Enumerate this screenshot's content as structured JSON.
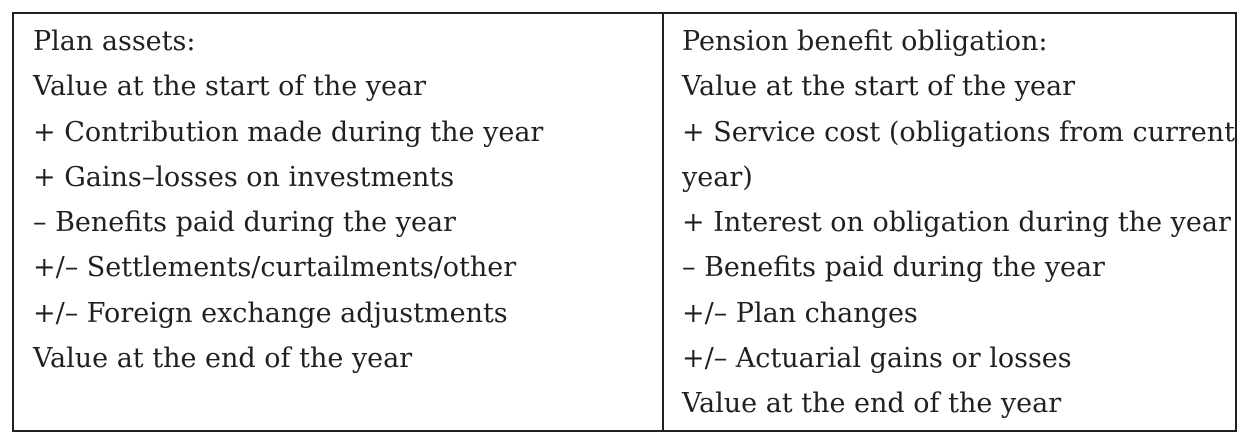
{
  "left_column": {
    "lines": [
      "Plan assets:",
      "Value at the start of the year",
      "+ Contribution made during the year",
      "+ Gains–losses on investments",
      "– Benefits paid during the year",
      "+/– Settlements/curtailments/other",
      "+/– Foreign exchange adjustments",
      "Value at the end of the year"
    ]
  },
  "right_column": {
    "lines": [
      "Pension benefit obligation:",
      "Value at the start of the year",
      "+ Service cost (obligations from current",
      "year)",
      "+ Interest on obligation during the year",
      "– Benefits paid during the year",
      "+/– Plan changes",
      "+/– Actuarial gains or losses",
      "Value at the end of the year"
    ]
  }
}
